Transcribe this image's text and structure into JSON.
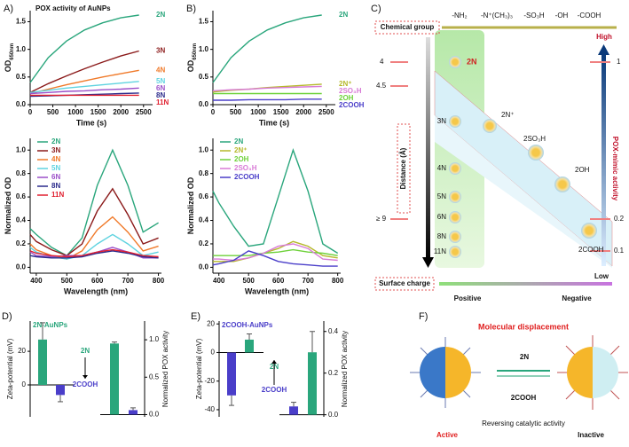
{
  "chart_data": [
    {
      "type": "line",
      "panel": "A)",
      "title": "POX activity of AuNPs",
      "x_label": "Time (s)",
      "y_label": "OD",
      "y_label_sub": "650nm",
      "x": [
        0,
        400,
        800,
        1200,
        1600,
        2000,
        2400
      ],
      "xlim": [
        0,
        2700
      ],
      "xticks": [
        0,
        500,
        1000,
        1500,
        2000,
        2500
      ],
      "ylim": [
        0,
        1.7
      ],
      "yticks": [
        {
          "value": 0,
          "label": "0.0"
        },
        {
          "value": 0.5,
          "label": "0.5"
        },
        {
          "value": 1,
          "label": "1.0"
        },
        {
          "value": 1.5,
          "label": "1.5"
        }
      ],
      "legend": "end",
      "series": [
        {
          "name": "2N",
          "color": "#2aa67c",
          "values": [
            0.4,
            0.85,
            1.15,
            1.35,
            1.48,
            1.57,
            1.62
          ]
        },
        {
          "name": "3N",
          "color": "#8b1a1a",
          "values": [
            0.22,
            0.38,
            0.52,
            0.65,
            0.77,
            0.88,
            0.97
          ]
        },
        {
          "name": "4N",
          "color": "#f07a2a",
          "values": [
            0.2,
            0.28,
            0.36,
            0.43,
            0.5,
            0.56,
            0.62
          ]
        },
        {
          "name": "5N",
          "color": "#5fd3e0",
          "values": [
            0.22,
            0.26,
            0.3,
            0.33,
            0.36,
            0.39,
            0.42
          ]
        },
        {
          "name": "6N",
          "color": "#9b4fc9",
          "values": [
            0.2,
            0.22,
            0.24,
            0.25,
            0.27,
            0.28,
            0.3
          ]
        },
        {
          "name": "8N",
          "color": "#2b2b8c",
          "values": [
            0.15,
            0.16,
            0.17,
            0.18,
            0.19,
            0.2,
            0.21
          ]
        },
        {
          "name": "11N",
          "color": "#e02030",
          "values": [
            0.17,
            0.17,
            0.17,
            0.17,
            0.17,
            0.17,
            0.17
          ]
        }
      ]
    },
    {
      "type": "line",
      "x_label": "Wavelength (nm)",
      "y_label": "Normalized OD",
      "x": [
        380,
        400,
        450,
        500,
        550,
        600,
        650,
        700,
        750,
        800
      ],
      "xlim": [
        380,
        810
      ],
      "xticks": [
        400,
        500,
        600,
        700,
        800
      ],
      "ylim": [
        -0.05,
        1.1
      ],
      "yticks": [
        {
          "value": 0,
          "label": "0.0"
        },
        {
          "value": 0.2,
          "label": "0.2"
        },
        {
          "value": 0.4,
          "label": "0.4"
        },
        {
          "value": 0.6,
          "label": "0.6"
        },
        {
          "value": 0.8,
          "label": "0.8"
        },
        {
          "value": 1,
          "label": "1.0"
        }
      ],
      "legend": "upper left",
      "series": [
        {
          "name": "2N",
          "color": "#2aa67c",
          "values": [
            0.33,
            0.28,
            0.17,
            0.1,
            0.25,
            0.7,
            1.0,
            0.7,
            0.3,
            0.38
          ]
        },
        {
          "name": "3N",
          "color": "#8b1a1a",
          "values": [
            0.28,
            0.22,
            0.15,
            0.1,
            0.2,
            0.48,
            0.67,
            0.45,
            0.2,
            0.25
          ]
        },
        {
          "name": "4N",
          "color": "#f07a2a",
          "values": [
            0.2,
            0.15,
            0.1,
            0.07,
            0.14,
            0.32,
            0.43,
            0.3,
            0.14,
            0.18
          ]
        },
        {
          "name": "5N",
          "color": "#5fd3e0",
          "values": [
            0.17,
            0.13,
            0.09,
            0.07,
            0.1,
            0.2,
            0.28,
            0.2,
            0.1,
            0.13
          ]
        },
        {
          "name": "6N",
          "color": "#9b4fc9",
          "values": [
            0.13,
            0.1,
            0.09,
            0.1,
            0.1,
            0.13,
            0.17,
            0.13,
            0.08,
            0.08
          ]
        },
        {
          "name": "8N",
          "color": "#2b2b8c",
          "values": [
            0.1,
            0.09,
            0.08,
            0.08,
            0.09,
            0.12,
            0.14,
            0.12,
            0.09,
            0.08
          ]
        },
        {
          "name": "11N",
          "color": "#e02030",
          "values": [
            0.14,
            0.12,
            0.1,
            0.09,
            0.1,
            0.13,
            0.15,
            0.13,
            0.1,
            0.09
          ]
        }
      ]
    },
    {
      "type": "line",
      "panel": "B)",
      "x_label": "Time (s)",
      "y_label": "OD",
      "y_label_sub": "650nm",
      "x": [
        0,
        400,
        800,
        1200,
        1600,
        2000,
        2400
      ],
      "xlim": [
        0,
        2700
      ],
      "xticks": [
        0,
        500,
        1000,
        1500,
        2000,
        2500
      ],
      "ylim": [
        0,
        1.7
      ],
      "yticks": [
        {
          "value": 0,
          "label": "0.0"
        },
        {
          "value": 0.5,
          "label": "0.5"
        },
        {
          "value": 1,
          "label": "1.0"
        },
        {
          "value": 1.5,
          "label": "1.5"
        }
      ],
      "legend": "end",
      "series": [
        {
          "name": "2N",
          "color": "#2aa67c",
          "values": [
            0.4,
            0.85,
            1.15,
            1.35,
            1.48,
            1.57,
            1.62
          ]
        },
        {
          "name": "2N⁺",
          "color": "#b5b82a",
          "values": [
            0.23,
            0.26,
            0.28,
            0.31,
            0.33,
            0.35,
            0.37
          ]
        },
        {
          "name": "2SO₃H",
          "color": "#d87bd6",
          "values": [
            0.25,
            0.27,
            0.28,
            0.3,
            0.31,
            0.32,
            0.33
          ]
        },
        {
          "name": "2OH",
          "color": "#6ed13a",
          "values": [
            0.2,
            0.2,
            0.2,
            0.2,
            0.2,
            0.2,
            0.2
          ]
        },
        {
          "name": "2COOH",
          "color": "#4a3ec9",
          "values": [
            0.08,
            0.08,
            0.09,
            0.09,
            0.09,
            0.1,
            0.1
          ]
        }
      ]
    },
    {
      "type": "line",
      "x_label": "Wavelength (nm)",
      "y_label": "Normalized OD",
      "x": [
        380,
        400,
        450,
        500,
        550,
        600,
        650,
        700,
        750,
        800
      ],
      "xlim": [
        380,
        810
      ],
      "xticks": [
        400,
        500,
        600,
        700,
        800
      ],
      "ylim": [
        -0.05,
        1.1
      ],
      "yticks": [
        {
          "value": 0,
          "label": "0.0"
        },
        {
          "value": 0.2,
          "label": "0.2"
        },
        {
          "value": 0.4,
          "label": "0.4"
        },
        {
          "value": 0.6,
          "label": "0.6"
        },
        {
          "value": 0.8,
          "label": "0.8"
        },
        {
          "value": 1,
          "label": "1.0"
        }
      ],
      "legend": "upper left",
      "series": [
        {
          "name": "2N",
          "color": "#2aa67c",
          "values": [
            0.65,
            0.55,
            0.35,
            0.18,
            0.2,
            0.6,
            1.0,
            0.65,
            0.2,
            0.12
          ]
        },
        {
          "name": "2N⁺",
          "color": "#b5b82a",
          "values": [
            0.05,
            0.05,
            0.05,
            0.08,
            0.12,
            0.16,
            0.22,
            0.18,
            0.1,
            0.08
          ]
        },
        {
          "name": "2OH",
          "color": "#6ed13a",
          "values": [
            0.1,
            0.1,
            0.1,
            0.1,
            0.12,
            0.13,
            0.15,
            0.13,
            0.12,
            0.1
          ]
        },
        {
          "name": "2SO₃H",
          "color": "#d87bd6",
          "values": [
            0.07,
            0.07,
            0.06,
            0.08,
            0.12,
            0.18,
            0.2,
            0.16,
            0.07,
            0.06
          ]
        },
        {
          "name": "2COOH",
          "color": "#4a3ec9",
          "values": [
            0.02,
            0.03,
            0.06,
            0.14,
            0.1,
            0.05,
            0.03,
            0.02,
            0.01,
            0.01
          ]
        }
      ]
    },
    {
      "type": "bar",
      "panel": "D)",
      "title": "2N-AuNPs",
      "title_color": "#2aa67c",
      "y_label": "Zeta-potential (mV)",
      "y2_label": "Normalized POX activity",
      "annotation_from": "2N",
      "annotation_to": "2COOH",
      "arrow": "down",
      "colors": [
        "#2aa67c",
        "#4a3ec9"
      ],
      "ylim": [
        -19,
        38
      ],
      "yticks": [
        0,
        20
      ],
      "y2lim": [
        -0.03,
        1.25
      ],
      "y2ticks": [
        {
          "value": 0,
          "label": "0.0"
        },
        {
          "value": 0.5,
          "label": "0.5"
        },
        {
          "value": 1,
          "label": "1.0"
        }
      ],
      "series": [
        {
          "values": [
            27,
            -6
          ],
          "errors": [
            10,
            4
          ]
        },
        {
          "axis": "y2",
          "values": [
            0.95,
            0.06
          ],
          "errors": [
            0.02,
            0.03
          ]
        }
      ]
    },
    {
      "type": "bar",
      "panel": "E)",
      "title": "2COOH-AuNPs",
      "title_color": "#4a3ec9",
      "y_label": "Zeta-potential (mV)",
      "y2_label": "Normalized POX activity",
      "annotation_from": "2N",
      "annotation_to": "2COOH",
      "arrow": "up",
      "colors": [
        "#4a3ec9",
        "#2aa67c"
      ],
      "ylim": [
        -45,
        22
      ],
      "yticks": [
        -40,
        -20,
        0,
        20
      ],
      "y2lim": [
        -0.01,
        0.45
      ],
      "y2ticks": [
        {
          "value": 0,
          "label": "0.0"
        },
        {
          "value": 0.2,
          "label": "0.2"
        },
        {
          "value": 0.4,
          "label": "0.4"
        }
      ],
      "series": [
        {
          "values": [
            -30,
            9
          ],
          "errors": [
            7,
            4
          ]
        },
        {
          "axis": "y2",
          "values": [
            0.04,
            0.3
          ],
          "errors": [
            0.02,
            0.1
          ]
        }
      ]
    }
  ],
  "panel_c": {
    "label": "C)",
    "chemical_group": "Chemical group",
    "groups": [
      "-NH₂",
      "-N⁺(CH₃)₃",
      "-SO₃H",
      "-OH",
      "-COOH"
    ],
    "high": "High",
    "low": "Low",
    "distance": "Distance (Å)",
    "activity": "POX-mimic activity",
    "left_ticks": [
      "4",
      "4.5",
      "≥ 9"
    ],
    "right_ticks": [
      "1",
      "0.2",
      "0.1"
    ],
    "surface_charge": "Surface charge",
    "positive": "Positive",
    "negative": "Negative",
    "nodes": [
      "2N",
      "3N",
      "4N",
      "5N",
      "6N",
      "8N",
      "11N",
      "2N⁺",
      "2SO₃H",
      "2OH",
      "2COOH"
    ]
  },
  "panel_f": {
    "label": "F)",
    "title": "Molecular displacement",
    "from": "2N",
    "to": "2COOH",
    "caption": "Reversing catalytic activity",
    "left": "Active",
    "right": "Inactive"
  }
}
